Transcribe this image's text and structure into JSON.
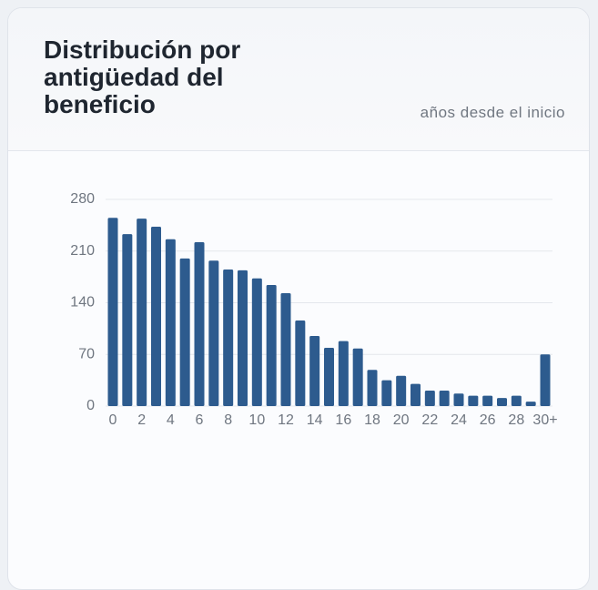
{
  "chart_data": {
    "type": "bar",
    "title": "Distribución por antigüedad del beneficio",
    "subtitle": "años desde el inicio",
    "categories": [
      "0",
      null,
      "2",
      null,
      "4",
      null,
      "6",
      null,
      "8",
      null,
      "10",
      null,
      "12",
      null,
      "14",
      null,
      "16",
      null,
      "18",
      null,
      "20",
      null,
      "22",
      null,
      "24",
      null,
      "26",
      null,
      "28",
      null,
      "30+"
    ],
    "values": [
      255,
      233,
      254,
      243,
      226,
      200,
      222,
      197,
      185,
      184,
      173,
      164,
      153,
      116,
      95,
      79,
      88,
      78,
      49,
      35,
      41,
      30,
      21,
      21,
      17,
      14,
      14,
      11,
      14,
      6,
      70
    ],
    "color": "#2d5b8e",
    "ylim": [
      0,
      280
    ],
    "yticks": [
      0,
      70,
      140,
      210,
      280
    ],
    "grid": true
  }
}
